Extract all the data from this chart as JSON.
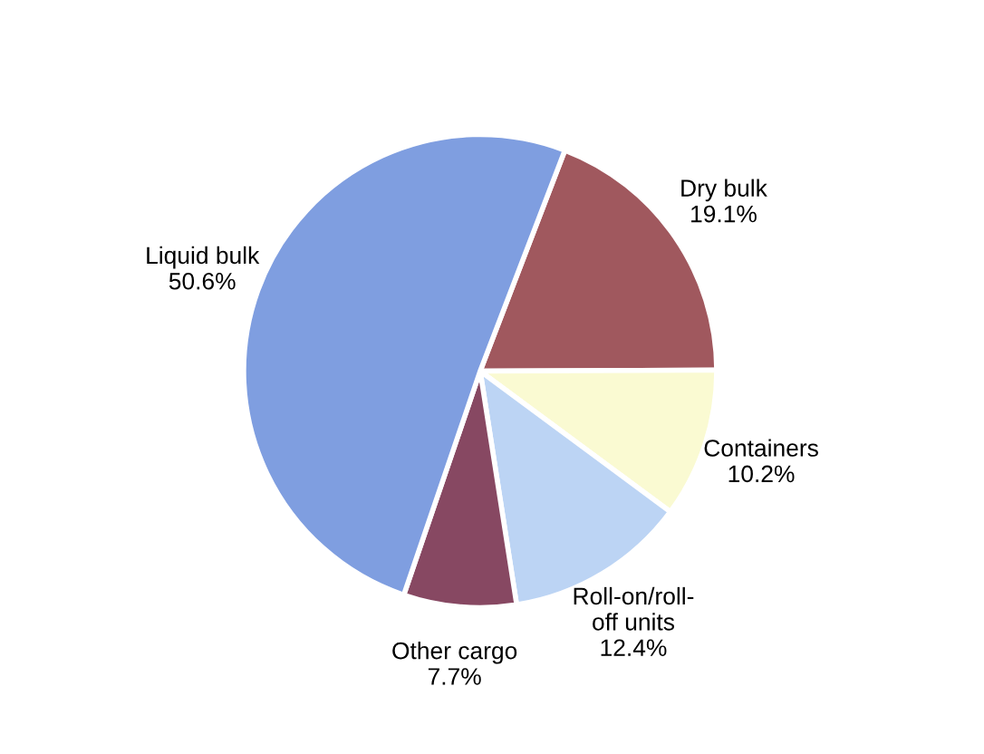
{
  "chart_data": {
    "type": "pie",
    "categories": [
      "Dry bulk",
      "Containers",
      "Roll-on/roll-\noff units",
      "Other cargo",
      "Liquid bulk"
    ],
    "values": [
      19.1,
      10.2,
      12.4,
      7.7,
      50.6
    ],
    "value_labels": [
      "19.1%",
      "10.2%",
      "12.4%",
      "7.7%",
      "50.6%"
    ],
    "colors": [
      "#a0585e",
      "#fafad2",
      "#bcd4f4",
      "#874862",
      "#7f9ee0"
    ],
    "legend": false
  }
}
